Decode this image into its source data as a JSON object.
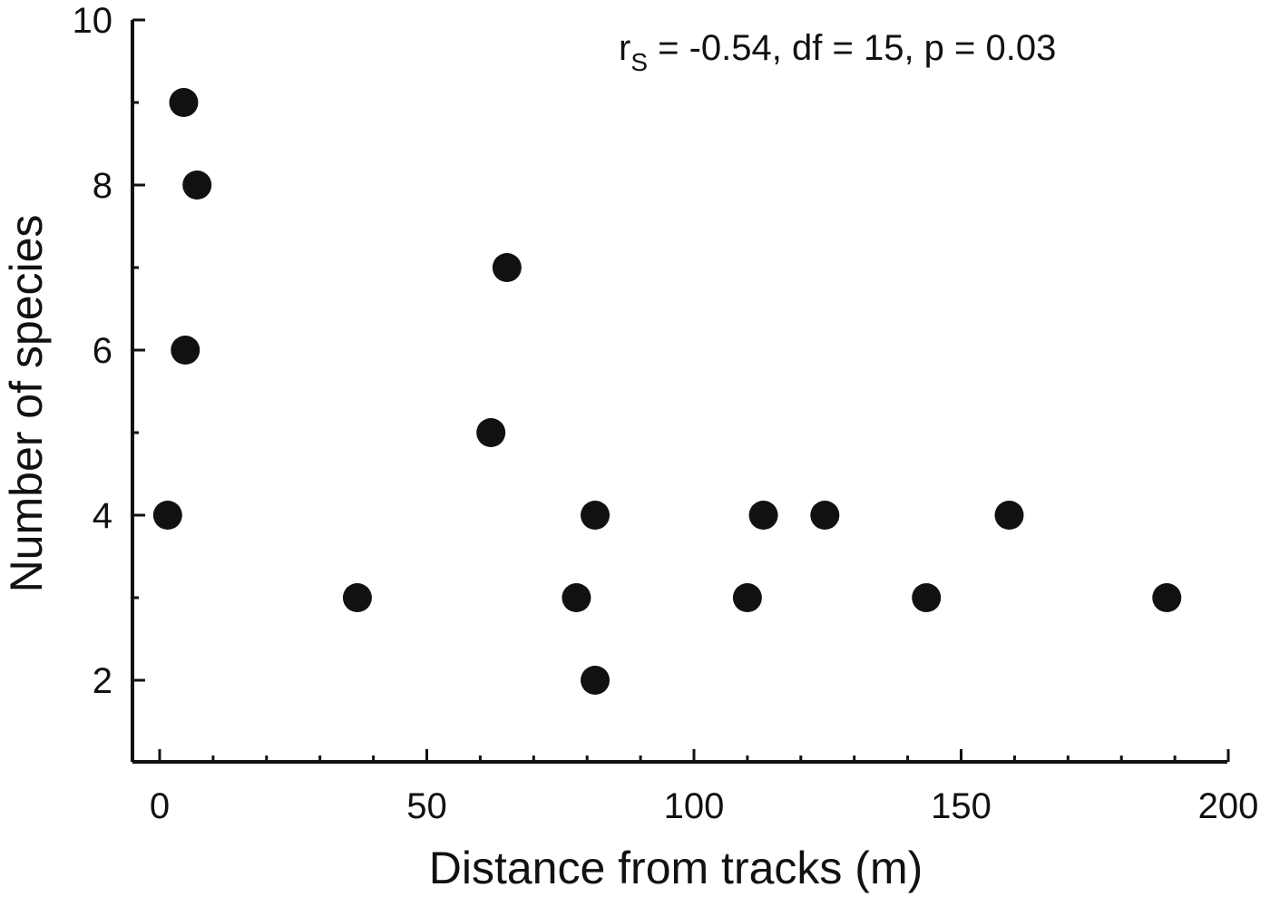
{
  "chart_data": {
    "type": "scatter",
    "xlabel": "Distance from tracks (m)",
    "ylabel": "Number of species",
    "xlim": [
      -5,
      200
    ],
    "ylim": [
      1,
      10
    ],
    "x_ticks": [
      0,
      50,
      100,
      150,
      200
    ],
    "x_tick_labels": [
      "0",
      "50",
      "100",
      "150",
      "200"
    ],
    "x_minor_ticks": [
      10,
      20,
      30,
      40,
      60,
      70,
      80,
      90,
      110,
      120,
      130,
      140,
      160,
      170,
      180,
      190
    ],
    "y_ticks": [
      2,
      4,
      6,
      8,
      10
    ],
    "y_tick_labels": [
      "2",
      "4",
      "6",
      "8",
      "10"
    ],
    "y_minor_ticks": [
      3,
      5,
      7,
      9
    ],
    "grid": false,
    "annotation": {
      "prefix": "r",
      "subscript": "S",
      "text": " = -0.54, df = 15, p = 0.03"
    },
    "points": [
      {
        "x": 1.5,
        "y": 4
      },
      {
        "x": 4.5,
        "y": 9
      },
      {
        "x": 4.8,
        "y": 6
      },
      {
        "x": 7,
        "y": 8
      },
      {
        "x": 37,
        "y": 3
      },
      {
        "x": 62,
        "y": 5
      },
      {
        "x": 65,
        "y": 7
      },
      {
        "x": 78,
        "y": 3
      },
      {
        "x": 81.5,
        "y": 4
      },
      {
        "x": 81.5,
        "y": 2
      },
      {
        "x": 110,
        "y": 3
      },
      {
        "x": 113,
        "y": 4
      },
      {
        "x": 124.5,
        "y": 4
      },
      {
        "x": 143.5,
        "y": 3
      },
      {
        "x": 159,
        "y": 4
      },
      {
        "x": 188.5,
        "y": 3
      }
    ]
  }
}
